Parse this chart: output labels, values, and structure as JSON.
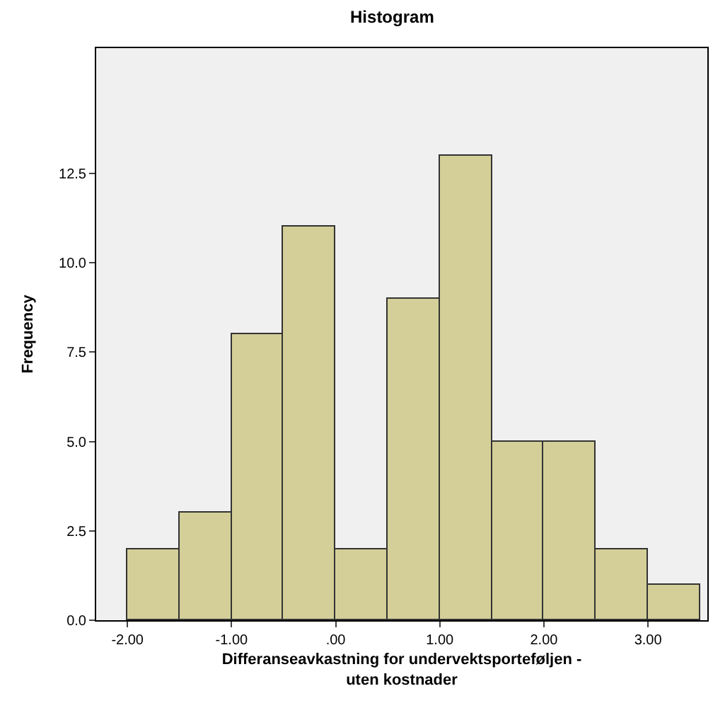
{
  "chart_data": {
    "type": "histogram",
    "title": "Histogram",
    "xlabel": "Differanseavkastning for undervektsporteføljen - uten kostnader",
    "ylabel": "Frequency",
    "bins": [
      -2.0,
      -1.5,
      -1.0,
      -0.5,
      0.0,
      0.5,
      1.0,
      1.5,
      2.0,
      2.5,
      3.0,
      3.5
    ],
    "values": [
      2,
      3,
      8,
      11,
      2,
      9,
      13,
      5,
      5,
      2,
      1
    ],
    "color": "#d4cf98",
    "xlim": [
      -2.3,
      3.57
    ],
    "ylim": [
      0,
      16
    ],
    "xticks": [
      {
        "value": -2,
        "label": "-2.00"
      },
      {
        "value": -1,
        "label": "-1.00"
      },
      {
        "value": 0,
        "label": ".00"
      },
      {
        "value": 1,
        "label": "1.00"
      },
      {
        "value": 2,
        "label": "2.00"
      },
      {
        "value": 3,
        "label": "3.00"
      }
    ],
    "yticks": [
      {
        "value": 0,
        "label": "0.0"
      },
      {
        "value": 2.5,
        "label": "2.5"
      },
      {
        "value": 5,
        "label": "5.0"
      },
      {
        "value": 7.5,
        "label": "7.5"
      },
      {
        "value": 10,
        "label": "10.0"
      },
      {
        "value": 12.5,
        "label": "12.5"
      }
    ],
    "grid": false,
    "legend": false
  }
}
